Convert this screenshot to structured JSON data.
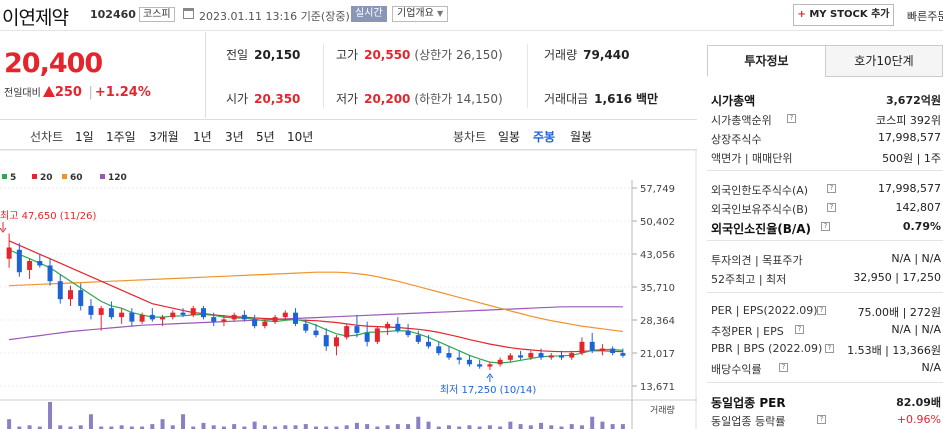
{
  "header": {
    "company_name": "이연제약",
    "code": "102460",
    "market": "코스피",
    "datetime": "2023.01.11 13:16",
    "datetime_suffix": "기준(장중)",
    "realtime_badge": "실시간",
    "company_overview": "기업개요",
    "my_stock_label": "MY STOCK 추가",
    "quick_label": "빠른주문"
  },
  "price": {
    "current": "20,400",
    "change_label": "전일대비",
    "change": "250",
    "change_pct": "+1.24%"
  },
  "stats": {
    "prev_close_label": "전일",
    "prev_close": "20,150",
    "high_label": "고가",
    "high": "20,550",
    "upper_limit": "(상한가 26,150)",
    "volume_label": "거래량",
    "volume": "79,440",
    "open_label": "시가",
    "open": "20,350",
    "low_label": "저가",
    "low": "20,200",
    "lower_limit": "(하한가 14,150)",
    "amount_label": "거래대금",
    "amount": "1,616",
    "amount_unit": "백만"
  },
  "chart_toolbar": {
    "line_label": "선차트",
    "periods": [
      "1일",
      "1주일",
      "3개월",
      "1년",
      "3년",
      "5년",
      "10년"
    ],
    "candle_label": "봉차트",
    "candle_periods": [
      "일봉",
      "주봉",
      "월봉"
    ],
    "active_candle": "주봉"
  },
  "chart_data": {
    "type": "candlestick",
    "legend": [
      {
        "name": "5",
        "color": "#2fa84f"
      },
      {
        "name": "20",
        "color": "#e4262c"
      },
      {
        "name": "60",
        "color": "#f0932b"
      },
      {
        "name": "120",
        "color": "#9b59b6"
      }
    ],
    "y_ticks": [
      "57,749",
      "50,402",
      "43,056",
      "35,710",
      "28,364",
      "21,017",
      "13,671"
    ],
    "ylim": [
      13671,
      57749
    ],
    "annotations": {
      "high": "최고 47,650 (11/26)",
      "low": "최저 17,250 (10/14)"
    },
    "volume_label": "거래량",
    "candles": [
      {
        "o": 42000,
        "h": 47650,
        "l": 40000,
        "c": 44500
      },
      {
        "o": 44000,
        "h": 45500,
        "l": 38000,
        "c": 39000
      },
      {
        "o": 39500,
        "h": 42000,
        "l": 37500,
        "c": 41500
      },
      {
        "o": 41500,
        "h": 43000,
        "l": 40000,
        "c": 40500
      },
      {
        "o": 40500,
        "h": 42000,
        "l": 36000,
        "c": 37000
      },
      {
        "o": 37000,
        "h": 38500,
        "l": 32000,
        "c": 33000
      },
      {
        "o": 33000,
        "h": 36000,
        "l": 31500,
        "c": 35000
      },
      {
        "o": 35000,
        "h": 36500,
        "l": 30500,
        "c": 31500
      },
      {
        "o": 31500,
        "h": 33000,
        "l": 28500,
        "c": 29500
      },
      {
        "o": 29500,
        "h": 31500,
        "l": 26000,
        "c": 31000
      },
      {
        "o": 31000,
        "h": 32500,
        "l": 28500,
        "c": 29000
      },
      {
        "o": 29000,
        "h": 31000,
        "l": 27500,
        "c": 30000
      },
      {
        "o": 30000,
        "h": 31000,
        "l": 27000,
        "c": 28000
      },
      {
        "o": 28000,
        "h": 30000,
        "l": 27500,
        "c": 29500
      },
      {
        "o": 29500,
        "h": 31000,
        "l": 28000,
        "c": 28500
      },
      {
        "o": 28500,
        "h": 29500,
        "l": 27000,
        "c": 29000
      },
      {
        "o": 29000,
        "h": 30500,
        "l": 28500,
        "c": 30000
      },
      {
        "o": 30000,
        "h": 31000,
        "l": 29000,
        "c": 29500
      },
      {
        "o": 29500,
        "h": 31500,
        "l": 29000,
        "c": 31000
      },
      {
        "o": 31000,
        "h": 31500,
        "l": 28500,
        "c": 29000
      },
      {
        "o": 29000,
        "h": 30000,
        "l": 27000,
        "c": 28000
      },
      {
        "o": 28000,
        "h": 29500,
        "l": 27000,
        "c": 28500
      },
      {
        "o": 28500,
        "h": 30000,
        "l": 28000,
        "c": 29500
      },
      {
        "o": 29500,
        "h": 30500,
        "l": 28000,
        "c": 28500
      },
      {
        "o": 28500,
        "h": 29500,
        "l": 26500,
        "c": 27000
      },
      {
        "o": 27000,
        "h": 28500,
        "l": 26500,
        "c": 28000
      },
      {
        "o": 28000,
        "h": 29500,
        "l": 27500,
        "c": 29000
      },
      {
        "o": 29000,
        "h": 30500,
        "l": 28500,
        "c": 30000
      },
      {
        "o": 30000,
        "h": 31000,
        "l": 27000,
        "c": 27500
      },
      {
        "o": 27500,
        "h": 28500,
        "l": 25500,
        "c": 26000
      },
      {
        "o": 26000,
        "h": 27500,
        "l": 24500,
        "c": 25000
      },
      {
        "o": 25000,
        "h": 26500,
        "l": 21500,
        "c": 22500
      },
      {
        "o": 22500,
        "h": 25000,
        "l": 20500,
        "c": 24500
      },
      {
        "o": 24500,
        "h": 27500,
        "l": 24000,
        "c": 27000
      },
      {
        "o": 27000,
        "h": 29500,
        "l": 24500,
        "c": 25500
      },
      {
        "o": 25500,
        "h": 28000,
        "l": 22500,
        "c": 23500
      },
      {
        "o": 23500,
        "h": 27000,
        "l": 23000,
        "c": 26500
      },
      {
        "o": 26500,
        "h": 28000,
        "l": 25000,
        "c": 27500
      },
      {
        "o": 27500,
        "h": 29000,
        "l": 25500,
        "c": 26000
      },
      {
        "o": 26000,
        "h": 27500,
        "l": 24500,
        "c": 25000
      },
      {
        "o": 25000,
        "h": 26000,
        "l": 23000,
        "c": 23500
      },
      {
        "o": 23500,
        "h": 25000,
        "l": 22000,
        "c": 22500
      },
      {
        "o": 22500,
        "h": 23500,
        "l": 20500,
        "c": 21000
      },
      {
        "o": 21000,
        "h": 22500,
        "l": 19500,
        "c": 20000
      },
      {
        "o": 20000,
        "h": 21500,
        "l": 18500,
        "c": 19500
      },
      {
        "o": 19500,
        "h": 20500,
        "l": 18000,
        "c": 18500
      },
      {
        "o": 18500,
        "h": 19500,
        "l": 17500,
        "c": 18000
      },
      {
        "o": 18000,
        "h": 19000,
        "l": 17250,
        "c": 18500
      },
      {
        "o": 18500,
        "h": 20000,
        "l": 18000,
        "c": 19500
      },
      {
        "o": 19500,
        "h": 21000,
        "l": 19000,
        "c": 20500
      },
      {
        "o": 20500,
        "h": 21500,
        "l": 19500,
        "c": 20000
      },
      {
        "o": 20000,
        "h": 21500,
        "l": 19500,
        "c": 21000
      },
      {
        "o": 21000,
        "h": 22000,
        "l": 19500,
        "c": 20000
      },
      {
        "o": 20000,
        "h": 21000,
        "l": 19500,
        "c": 20500
      },
      {
        "o": 20500,
        "h": 21500,
        "l": 19500,
        "c": 20000
      },
      {
        "o": 20000,
        "h": 21500,
        "l": 19500,
        "c": 21000
      },
      {
        "o": 21000,
        "h": 24500,
        "l": 20500,
        "c": 23500
      },
      {
        "o": 23500,
        "h": 25500,
        "l": 21000,
        "c": 21500
      },
      {
        "o": 21500,
        "h": 23000,
        "l": 20500,
        "c": 22000
      },
      {
        "o": 22000,
        "h": 22500,
        "l": 20500,
        "c": 21000
      },
      {
        "o": 21000,
        "h": 22000,
        "l": 20000,
        "c": 20400
      }
    ],
    "ma5": [
      44000,
      43000,
      42000,
      41000,
      40000,
      38500,
      37000,
      35500,
      34000,
      32500,
      31500,
      31000,
      30000,
      29500,
      29000,
      29000,
      29200,
      29300,
      29500,
      29600,
      29400,
      29000,
      28800,
      28800,
      28500,
      28200,
      28000,
      28300,
      28500,
      28000,
      27200,
      26200,
      25300,
      24800,
      25000,
      25600,
      25700,
      25800,
      26000,
      25900,
      25300,
      24500,
      23500,
      22500,
      21500,
      20500,
      19700,
      19000,
      18800,
      19000,
      19400,
      19800,
      20200,
      20300,
      20400,
      20500,
      21000,
      21600,
      21800,
      21800,
      21600
    ],
    "ma20": [
      46000,
      45000,
      44000,
      43000,
      42000,
      41000,
      40000,
      39000,
      38000,
      37000,
      36000,
      35000,
      34000,
      33000,
      32000,
      31500,
      31000,
      30500,
      30000,
      29800,
      29500,
      29300,
      29100,
      29000,
      28800,
      28700,
      28600,
      28500,
      28400,
      28300,
      28200,
      28000,
      27800,
      27500,
      27200,
      27000,
      26900,
      26800,
      26700,
      26500,
      26300,
      26000,
      25600,
      25100,
      24600,
      24000,
      23500,
      23000,
      22600,
      22200,
      21900,
      21700,
      21500,
      21400,
      21300,
      21300,
      21400,
      21500,
      21500,
      21400,
      21300
    ],
    "ma60": [
      36000,
      36100,
      36200,
      36300,
      36400,
      36500,
      36600,
      36700,
      36800,
      36900,
      37000,
      37100,
      37200,
      37300,
      37400,
      37500,
      37600,
      37700,
      37800,
      37900,
      38000,
      38100,
      38200,
      38300,
      38400,
      38500,
      38600,
      38700,
      38800,
      38900,
      39000,
      39000,
      39000,
      38900,
      38700,
      38400,
      38000,
      37500,
      37000,
      36400,
      35800,
      35200,
      34600,
      34000,
      33400,
      32800,
      32200,
      31600,
      31000,
      30400,
      29800,
      29200,
      28700,
      28200,
      27800,
      27400,
      27000,
      26700,
      26400,
      26100,
      25800
    ],
    "ma120": [
      24000,
      24300,
      24600,
      24900,
      25200,
      25500,
      25800,
      26000,
      26200,
      26400,
      26600,
      26800,
      27000,
      27200,
      27300,
      27400,
      27500,
      27600,
      27700,
      27800,
      27900,
      28000,
      28100,
      28200,
      28300,
      28400,
      28500,
      28600,
      28700,
      28800,
      28900,
      29000,
      29100,
      29200,
      29300,
      29400,
      29500,
      29600,
      29700,
      29800,
      29900,
      30000,
      30100,
      30200,
      30300,
      30400,
      30500,
      30600,
      30700,
      30800,
      30900,
      31000,
      31100,
      31200,
      31300,
      31300,
      31300,
      31300,
      31300,
      31300,
      31300
    ],
    "volume": [
      8,
      2,
      3,
      2,
      22,
      3,
      2,
      3,
      12,
      2,
      2,
      3,
      2,
      2,
      4,
      8,
      3,
      12,
      2,
      5,
      3,
      2,
      4,
      2,
      6,
      3,
      2,
      3,
      3,
      4,
      2,
      2,
      2,
      3,
      5,
      4,
      2,
      3,
      4,
      4,
      10,
      6,
      2,
      3,
      2,
      3,
      2,
      3,
      2,
      6,
      4,
      3,
      5,
      3,
      2,
      4,
      3,
      10,
      6,
      4,
      4
    ]
  },
  "right_panel": {
    "tabs": [
      "투자정보",
      "호가10단계"
    ],
    "rows": [
      {
        "k": "시가총액",
        "v": "3,672억원",
        "kb": true
      },
      {
        "k": "시가총액순위",
        "v": "코스피 392위"
      },
      {
        "k": "상장주식수",
        "v": "17,998,577"
      },
      {
        "k": "액면가 | 매매단위",
        "v": "500원 | 1주"
      },
      {
        "k": "외국인한도주식수(A)",
        "v": "17,998,577"
      },
      {
        "k": "외국인보유주식수(B)",
        "v": "142,807"
      },
      {
        "k": "외국인소진율(B/A)",
        "v": "0.79%",
        "kb": true
      },
      {
        "k": "투자의견 | 목표주가",
        "v": "N/A | N/A"
      },
      {
        "k": "52주최고 | 최저",
        "v": "32,950 | 17,250"
      },
      {
        "k": "PER | EPS(2022.09)",
        "v": "75.00배 | 272원"
      },
      {
        "k": "추정PER | EPS",
        "v": "N/A | N/A"
      },
      {
        "k": "PBR | BPS (2022.09)",
        "v": "1.53배 | 13,366원"
      },
      {
        "k": "배당수익률",
        "v": "N/A"
      },
      {
        "k": "동일업종 PER",
        "v": "82.09배",
        "kb": true
      },
      {
        "k": "동일업종 등락률",
        "v": "+0.96%",
        "red": true
      }
    ]
  }
}
